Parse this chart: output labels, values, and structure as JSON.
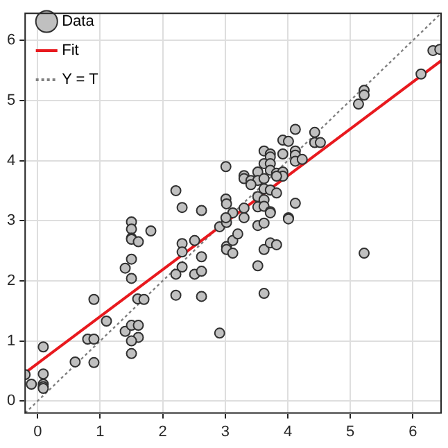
{
  "chart_data": {
    "type": "scatter",
    "xlim": [
      -0.2,
      6.45
    ],
    "ylim": [
      -0.2,
      6.45
    ],
    "xticks": [
      0,
      1,
      2,
      3,
      4,
      5,
      6
    ],
    "yticks": [
      0,
      1,
      2,
      3,
      4,
      5,
      6
    ],
    "grid": true,
    "legend": "top left",
    "series": [
      {
        "name": "Data",
        "marker": "circle",
        "color": "#c0c0c0",
        "x": [
          -0.2,
          -0.1,
          0.09,
          0.09,
          0.09,
          0.09,
          0.09,
          0.6,
          0.8,
          0.9,
          0.9,
          0.9,
          1.1,
          1.4,
          1.5,
          1.5,
          1.5,
          1.5,
          1.61,
          1.81,
          1.5,
          1.5,
          1.6,
          1.7,
          1.4,
          1.5,
          1.61,
          1.61,
          1.5,
          1.5,
          2.21,
          2.21,
          2.31,
          2.31,
          2.31,
          2.51,
          2.51,
          2.62,
          2.62,
          2.62,
          2.91,
          2.91,
          3.02,
          3.02,
          3.02,
          3.12,
          3.12,
          3.12,
          3.2,
          3.01,
          2.21,
          2.31,
          2.62,
          3.01,
          3.01,
          4.12,
          3.92,
          4.01,
          4.43,
          4.43,
          4.52,
          3.62,
          3.72,
          3.72,
          3.92,
          4.12,
          4.12,
          4.12,
          4.23,
          3.62,
          3.72,
          3.72,
          3.52,
          3.82,
          3.92,
          3.92,
          3.82,
          3.3,
          3.3,
          3.41,
          3.52,
          3.41,
          3.62,
          3.62,
          3.72,
          3.52,
          3.62,
          3.82,
          4.12,
          3.02,
          3.3,
          3.52,
          3.62,
          3.72,
          3.3,
          4.01,
          5.13,
          5.22,
          5.22,
          6.13,
          6.32,
          6.43,
          3.52,
          3.62,
          3.72,
          4.01,
          3.62,
          3.72,
          3.82,
          3.52,
          3.62,
          5.22
        ],
        "values": [
          0.44,
          0.28,
          0.9,
          0.45,
          0.28,
          0.24,
          0.21,
          0.65,
          1.03,
          1.03,
          0.64,
          1.69,
          1.33,
          2.21,
          2.98,
          2.86,
          2.71,
          2.69,
          2.65,
          2.83,
          2.36,
          2.04,
          1.7,
          1.69,
          1.16,
          1.26,
          1.26,
          1.06,
          1.0,
          0.79,
          2.11,
          1.76,
          2.62,
          2.48,
          2.23,
          2.67,
          2.11,
          2.4,
          2.16,
          1.74,
          1.13,
          2.9,
          2.97,
          2.57,
          2.52,
          2.46,
          2.67,
          3.13,
          2.78,
          3.9,
          3.5,
          3.22,
          3.17,
          3.36,
          3.05,
          4.52,
          4.34,
          4.32,
          4.47,
          4.3,
          4.3,
          4.16,
          4.11,
          4.06,
          4.11,
          4.16,
          4.09,
          3.99,
          4.02,
          3.95,
          3.95,
          3.84,
          3.81,
          3.79,
          3.81,
          3.74,
          3.74,
          3.75,
          3.7,
          3.67,
          3.67,
          3.6,
          3.7,
          3.53,
          3.51,
          3.4,
          3.35,
          3.46,
          3.29,
          3.28,
          3.21,
          3.23,
          3.24,
          3.15,
          3.05,
          3.05,
          4.94,
          5.17,
          5.09,
          5.44,
          5.83,
          5.85,
          2.92,
          2.96,
          3.13,
          3.03,
          2.52,
          2.63,
          2.6,
          2.25,
          1.79,
          2.46
        ]
      },
      {
        "name": "Fit",
        "type": "line",
        "marker": "none",
        "line_style": "solid",
        "color": "#e8191e",
        "x": [
          -0.2,
          6.45
        ],
        "values": [
          0.47,
          5.66
        ]
      },
      {
        "name": "Y = T",
        "type": "line",
        "marker": "none",
        "line_style": "dotted",
        "color": "#808080",
        "x": [
          -0.2,
          6.45
        ],
        "values": [
          -0.2,
          6.45
        ]
      }
    ]
  }
}
